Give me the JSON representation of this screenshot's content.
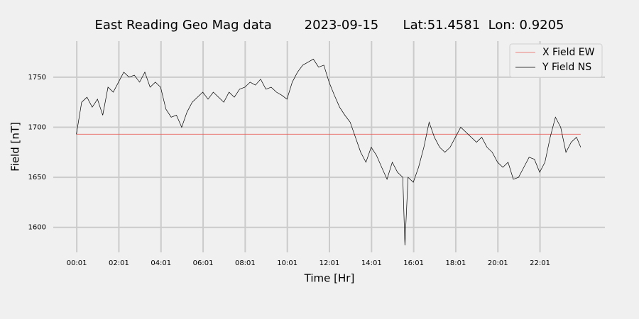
{
  "chart_data": {
    "type": "line",
    "title": "East Reading Geo Mag data        2023-09-15      Lat:51.4581  Lon: 0.9205",
    "x_label": "Time  [Hr]",
    "y_label": "Field  [nT]",
    "xlim": [
      -1.1,
      25.1
    ],
    "ylim": [
      1575,
      1786
    ],
    "xticks": [
      {
        "value": 0.0167,
        "label": "00:01"
      },
      {
        "value": 2.0167,
        "label": "02:01"
      },
      {
        "value": 4.0167,
        "label": "04:01"
      },
      {
        "value": 6.0167,
        "label": "06:01"
      },
      {
        "value": 8.0167,
        "label": "08:01"
      },
      {
        "value": 10.0167,
        "label": "10:01"
      },
      {
        "value": 12.0167,
        "label": "12:01"
      },
      {
        "value": 14.0167,
        "label": "14:01"
      },
      {
        "value": 16.0167,
        "label": "16:01"
      },
      {
        "value": 18.0167,
        "label": "18:01"
      },
      {
        "value": 20.0167,
        "label": "20:01"
      },
      {
        "value": 22.0167,
        "label": "22:01"
      }
    ],
    "yticks": [
      1600,
      1650,
      1700,
      1750
    ],
    "grid": true,
    "legend": "upper right",
    "series": [
      {
        "name": "X Field EW",
        "color": "#e8605a",
        "x": [
          0.0,
          23.95
        ],
        "values": [
          1693,
          1693
        ]
      },
      {
        "name": "Y Field NS",
        "color": "#000000",
        "x": [
          0.0,
          0.25,
          0.5,
          0.75,
          1.0,
          1.25,
          1.5,
          1.75,
          2.0,
          2.25,
          2.5,
          2.75,
          3.0,
          3.25,
          3.5,
          3.75,
          4.0,
          4.25,
          4.5,
          4.75,
          5.0,
          5.25,
          5.5,
          5.75,
          6.0,
          6.25,
          6.5,
          6.75,
          7.0,
          7.25,
          7.5,
          7.75,
          8.0,
          8.25,
          8.5,
          8.75,
          9.0,
          9.25,
          9.5,
          9.75,
          10.0,
          10.25,
          10.5,
          10.75,
          11.0,
          11.25,
          11.5,
          11.75,
          12.0,
          12.25,
          12.5,
          12.75,
          13.0,
          13.25,
          13.5,
          13.75,
          14.0,
          14.25,
          14.5,
          14.75,
          15.0,
          15.25,
          15.5,
          15.6,
          15.75,
          16.0,
          16.25,
          16.5,
          16.75,
          17.0,
          17.25,
          17.5,
          17.75,
          18.0,
          18.25,
          18.5,
          18.75,
          19.0,
          19.25,
          19.5,
          19.75,
          20.0,
          20.25,
          20.5,
          20.75,
          21.0,
          21.25,
          21.5,
          21.75,
          22.0,
          22.25,
          22.5,
          22.75,
          23.0,
          23.25,
          23.5,
          23.75,
          23.95
        ],
        "values": [
          1693,
          1725,
          1730,
          1720,
          1728,
          1712,
          1740,
          1735,
          1745,
          1755,
          1750,
          1752,
          1745,
          1755,
          1740,
          1745,
          1740,
          1718,
          1710,
          1712,
          1700,
          1715,
          1725,
          1730,
          1735,
          1728,
          1735,
          1730,
          1725,
          1735,
          1730,
          1738,
          1740,
          1745,
          1742,
          1748,
          1738,
          1740,
          1735,
          1732,
          1728,
          1745,
          1755,
          1762,
          1765,
          1768,
          1760,
          1762,
          1745,
          1732,
          1720,
          1712,
          1705,
          1690,
          1675,
          1665,
          1680,
          1672,
          1660,
          1648,
          1665,
          1655,
          1650,
          1582,
          1650,
          1645,
          1660,
          1680,
          1705,
          1690,
          1680,
          1675,
          1680,
          1690,
          1700,
          1695,
          1690,
          1685,
          1690,
          1680,
          1675,
          1665,
          1660,
          1665,
          1648,
          1650,
          1660,
          1670,
          1668,
          1655,
          1665,
          1690,
          1710,
          1700,
          1675,
          1685,
          1690,
          1680
        ]
      }
    ]
  }
}
